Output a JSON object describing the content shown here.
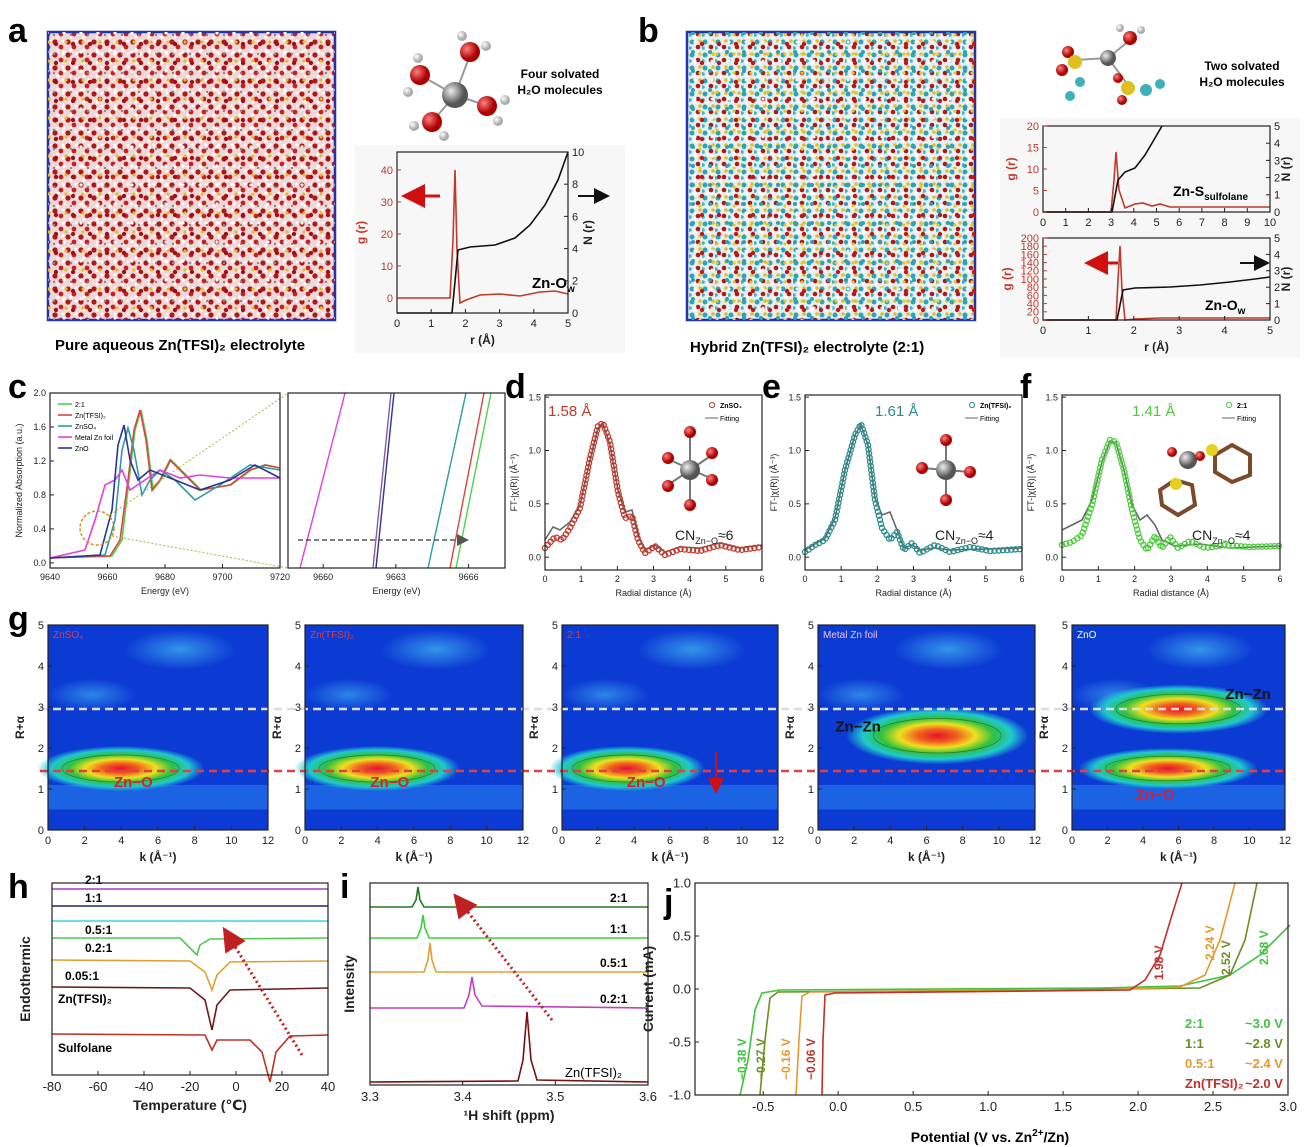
{
  "a": {
    "label": "a",
    "caption": "Pure aqueous Zn(TFSI)₂ electrolyte",
    "note": [
      "Four solvated",
      "H₂O molecules"
    ],
    "rdf": {
      "xlim": [
        0,
        5
      ],
      "xticks": [
        0,
        1,
        2,
        3,
        4,
        5
      ],
      "ylim": [
        -4.7,
        45.6
      ],
      "yticks": [
        0,
        10,
        20,
        30,
        40
      ],
      "y2lim": [
        0,
        10
      ],
      "y2ticks": [
        0,
        2,
        4,
        6,
        8,
        10
      ],
      "xlabel": "r (Å)",
      "ylabel": "g (r)",
      "y2label": "N (r)",
      "annotation": {
        "main": "Zn-O",
        "sub": "w"
      }
    }
  },
  "b": {
    "label": "b",
    "caption": "Hybrid Zn(TFSI)₂ electrolyte (2:1)",
    "note": [
      "Two solvated",
      "H₂O molecules"
    ],
    "rdf_top": {
      "xlim": [
        0,
        10
      ],
      "xticks": [
        0,
        1,
        2,
        3,
        4,
        5,
        6,
        7,
        8,
        9,
        10
      ],
      "ylim": [
        0,
        20
      ],
      "yticks": [
        0,
        5,
        10,
        15,
        20
      ],
      "y2lim": [
        0,
        5
      ],
      "y2ticks": [
        0,
        1,
        2,
        3,
        4,
        5
      ],
      "ylabel": "g (r)",
      "y2label": "N (r)",
      "annotation": {
        "main": "Zn-S",
        "sub": "sulfolane"
      }
    },
    "rdf_bottom": {
      "xlim": [
        0,
        5
      ],
      "xticks": [
        0,
        1,
        2,
        3,
        4,
        5
      ],
      "ylim": [
        0,
        200
      ],
      "yticks": [
        0,
        20,
        40,
        60,
        80,
        100,
        120,
        140,
        160,
        180,
        200
      ],
      "y2lim": [
        0,
        5
      ],
      "y2ticks": [
        0,
        1,
        2,
        3,
        4,
        5
      ],
      "xlabel": "r (Å)",
      "ylabel": "g (r)",
      "y2label": "N (r)",
      "annotation": {
        "main": "Zn-O",
        "sub": "w"
      }
    }
  },
  "c": {
    "label": "c",
    "xanes": {
      "xlim": [
        9640,
        9720
      ],
      "xticks": [
        9640,
        9660,
        9680,
        9700,
        9720
      ],
      "ylim": [
        -0.06,
        2.0
      ],
      "yticks": [
        {
          "value": 0,
          "label": "0.0"
        },
        {
          "value": 0.4,
          "label": "0.4"
        },
        {
          "value": 0.8,
          "label": "0.8"
        },
        {
          "value": 1.2,
          "label": "1.2"
        },
        {
          "value": 1.6,
          "label": "1.6"
        },
        {
          "value": 2,
          "label": "2.0"
        }
      ],
      "xlabel": "Energy (eV)",
      "ylabel": "Normalized Absorption (a.u.)",
      "legend": [
        {
          "name": "2:1",
          "color": "#52cf52"
        },
        {
          "name": "Zn(TFSI)₂",
          "color": "#d9463f"
        },
        {
          "name": "ZnSO₄",
          "color": "#2f9aa3"
        },
        {
          "name": "Metal Zn foil",
          "color": "#df3fdf"
        },
        {
          "name": "ZnO",
          "color": "#2c3590"
        }
      ]
    },
    "zoom": {
      "xlim": [
        9658.55,
        9667.5
      ],
      "xticks": [
        9660,
        9663,
        9666
      ],
      "xlabel": "Energy (eV)"
    }
  },
  "d": {
    "label": "d",
    "color": "#c0392b",
    "xlim": [
      0,
      6
    ],
    "xticks": [
      0,
      1,
      2,
      3,
      4,
      5,
      6
    ],
    "ylim": [
      -0.12,
      1.52
    ],
    "yticks": [
      {
        "value": 0,
        "label": "0.0"
      },
      {
        "value": 0.5,
        "label": "0.5"
      },
      {
        "value": 1,
        "label": "1.0"
      },
      {
        "value": 1.5,
        "label": "1.5"
      }
    ],
    "xlabel": "Radial distance (Å)",
    "ylabel": "FT-|χ(R)| (Å⁻³)",
    "peak": "1.58 Å",
    "legend": [
      "ZnSO₄",
      "Fitting"
    ],
    "cn": {
      "main": "CN",
      "sub": "Zn−O",
      "tail": "≈6"
    }
  },
  "e": {
    "label": "e",
    "color": "#2a8c8c",
    "xlim": [
      0,
      6
    ],
    "xticks": [
      0,
      1,
      2,
      3,
      4,
      5,
      6
    ],
    "ylim": [
      -0.12,
      1.52
    ],
    "yticks": [
      {
        "value": 0,
        "label": "0.0"
      },
      {
        "value": 0.5,
        "label": "0.5"
      },
      {
        "value": 1,
        "label": "1.0"
      },
      {
        "value": 1.5,
        "label": "1.5"
      }
    ],
    "xlabel": "Radial distance (Å)",
    "ylabel": "FT-|χ(R)| (Å⁻³)",
    "peak": "1.61 Å",
    "legend": [
      "Zn(TFSI)₂",
      "Fitting"
    ],
    "cn": {
      "main": "CN",
      "sub": "Zn−O",
      "tail": "≈4"
    }
  },
  "f": {
    "label": "f",
    "color": "#4ccc3c",
    "xlim": [
      0,
      6
    ],
    "xticks": [
      0,
      1,
      2,
      3,
      4,
      5,
      6
    ],
    "ylim": [
      -0.12,
      1.52
    ],
    "yticks": [
      {
        "value": 0,
        "label": "0.0"
      },
      {
        "value": 0.5,
        "label": "0.5"
      },
      {
        "value": 1,
        "label": "1.0"
      },
      {
        "value": 1.5,
        "label": "1.5"
      }
    ],
    "xlabel": "Radial distance (Å)",
    "ylabel": "FT-|χ(R)| (Å⁻³)",
    "peak": "1.41 Å",
    "legend": [
      "2:1",
      "Fitting"
    ],
    "cn": {
      "main": "CN",
      "sub": "Zn−O",
      "tail": "≈4"
    }
  },
  "g": {
    "label": "g",
    "xlim": [
      0,
      12
    ],
    "xticks": [
      0,
      2,
      4,
      6,
      8,
      10,
      12
    ],
    "ylim": [
      0,
      5
    ],
    "yticks": [
      0,
      1,
      2,
      3,
      4,
      5
    ],
    "xlabel": "k (Å⁻¹)",
    "ylabel": "R+α",
    "maps": [
      {
        "name": "ZnSO₄",
        "annotations": [
          "Zn−O"
        ]
      },
      {
        "name": "Zn(TFSI)₂",
        "annotations": [
          "Zn−O"
        ]
      },
      {
        "name": "2:1",
        "annotations": [
          "Zn−O"
        ]
      },
      {
        "name": "Metal Zn foil",
        "annotations": [
          "Zn−Zn"
        ]
      },
      {
        "name": "ZnO",
        "annotations": [
          "Zn−Zn",
          "Zn−O"
        ]
      }
    ]
  },
  "h": {
    "label": "h",
    "xlim": [
      -80,
      40
    ],
    "xticks": [
      -80,
      -60,
      -40,
      -20,
      0,
      20,
      40
    ],
    "xlabel": "Temperature (℃)",
    "ylabel": "Endothermic",
    "curves": [
      {
        "name": "2:1",
        "color": "#a040c0"
      },
      {
        "name": "1:1",
        "color": "#22226e"
      },
      {
        "name": "0.5:1",
        "color": "#3fd2e0"
      },
      {
        "name": "0.2:1",
        "color": "#4ec84e"
      },
      {
        "name": "0.05:1",
        "color": "#e0a030"
      },
      {
        "name": "Zn(TFSI)₂",
        "color": "#6a1a1a"
      },
      {
        "name": "Sulfolane",
        "color": "#c03020"
      }
    ]
  },
  "i": {
    "label": "i",
    "xlim": [
      3.3,
      3.6
    ],
    "xticks": [
      3.3,
      3.4,
      3.5,
      3.6
    ],
    "xlabel": "¹H shift (ppm)",
    "ylabel": "Intensity",
    "curves": [
      {
        "name": "2:1",
        "color": "#1e7a1e"
      },
      {
        "name": "1:1",
        "color": "#3ccf3c"
      },
      {
        "name": "0.5:1",
        "color": "#e0a030"
      },
      {
        "name": "0.2:1",
        "color": "#c040c0"
      },
      {
        "name": "Zn(TFSI)₂",
        "color": "#7a1010"
      }
    ]
  },
  "j": {
    "label": "j",
    "xlim": [
      -0.955,
      3.0
    ],
    "xticks": [
      -0.5,
      {
        "value": 0,
        "label": "0.0"
      },
      0.5,
      {
        "value": 1,
        "label": "1.0"
      },
      1.5,
      {
        "value": 2,
        "label": "2.0"
      },
      2.5,
      {
        "value": 3,
        "label": "3.0"
      }
    ],
    "ylim": [
      -1,
      1
    ],
    "yticks": [
      {
        "value": -1,
        "label": "-1.0"
      },
      -0.5,
      {
        "value": 0,
        "label": "0.0"
      },
      0.5,
      {
        "value": 1,
        "label": "1.0"
      }
    ],
    "xlabel": {
      "main": "Potential (V vs. Zn",
      "sup": "2+",
      "tail": "/Zn)"
    },
    "ylabel": "Current (mA)",
    "onset": [
      "−0.38 V",
      "−0.27 V",
      "−0.16 V",
      "−0.06 V"
    ],
    "limit": [
      "1.98 V",
      "2.24 V",
      "2.52 V",
      "2.68 V"
    ],
    "legend": [
      {
        "name": "2:1",
        "window": "~3.0 V",
        "color": "#3ec43e"
      },
      {
        "name": "1:1",
        "window": "~2.8 V",
        "color": "#6b8e23"
      },
      {
        "name": "0.5:1",
        "window": "~2.4 V",
        "color": "#e29a2a"
      },
      {
        "name": "Zn(TFSI)₂",
        "window": "~2.0 V",
        "color": "#c0302c"
      }
    ]
  }
}
